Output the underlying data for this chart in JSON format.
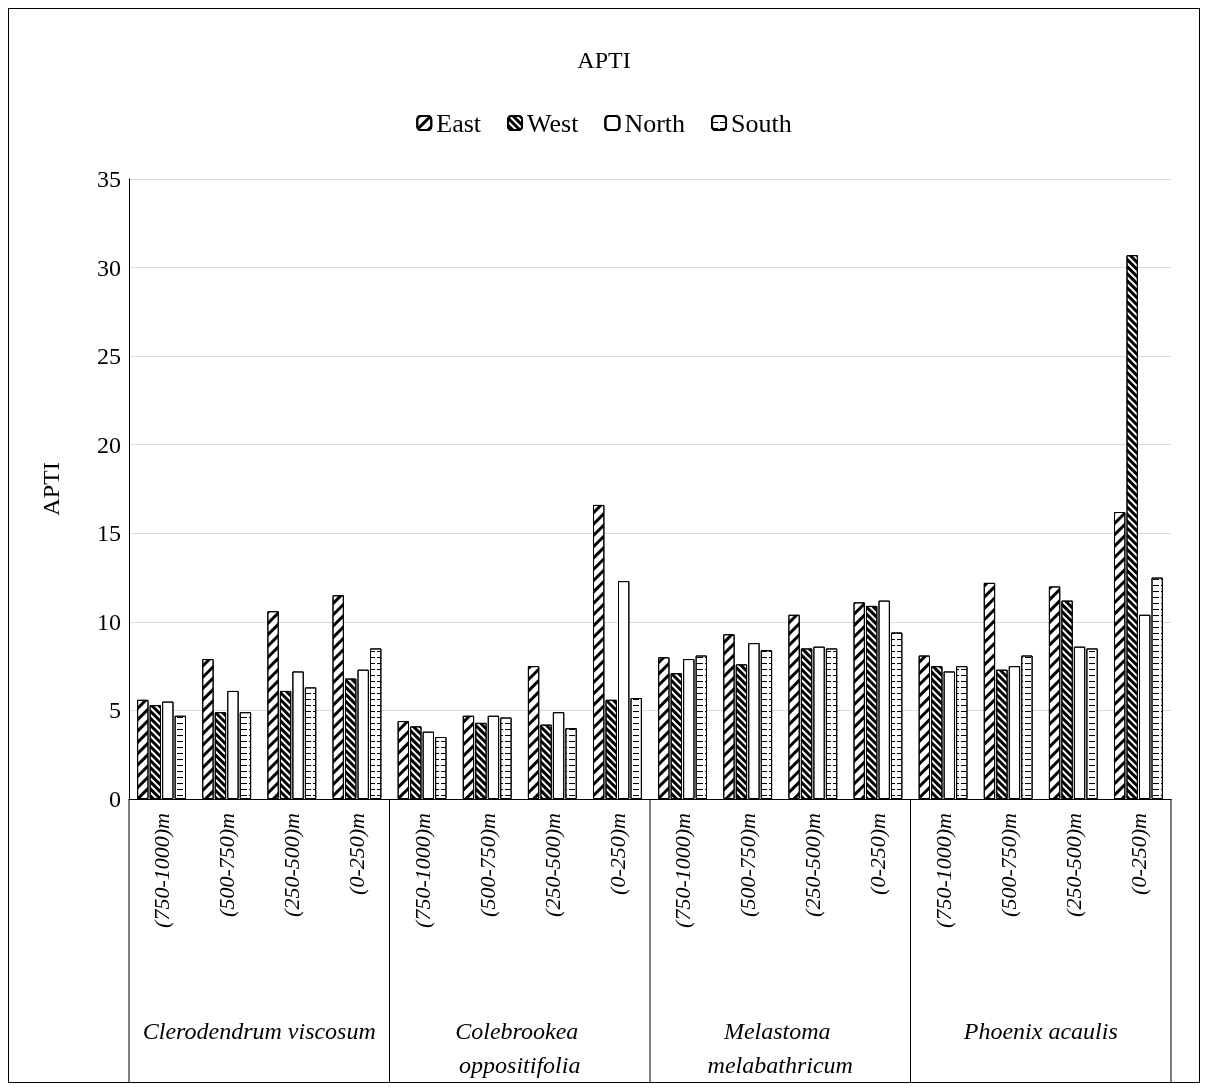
{
  "chart_data": {
    "type": "bar",
    "title": "APTI",
    "ylabel": "APTI",
    "categories": [
      "(750-1000)m",
      "(500-750)m",
      "(250-500)m",
      "(0-250)m",
      "(750-1000)m",
      "(500-750)m",
      "(250-500)m",
      "(0-250)m",
      "(750-1000)m",
      "(500-750)m",
      "(250-500)m",
      "(0-250)m",
      "(750-1000)m",
      "(500-750)m",
      "(250-500)m",
      "(0-250)m"
    ],
    "annotations": [
      "Clerodendrum viscosum",
      "Colebrookea oppositifolia",
      "Melastoma melabathricum",
      "Phoenix acaulis"
    ],
    "series": [
      {
        "name": "East",
        "color": "#ffffff",
        "values": [
          5.6,
          7.9,
          10.6,
          11.5,
          4.4,
          4.7,
          7.5,
          16.6,
          8.0,
          9.3,
          10.4,
          11.1,
          8.1,
          12.2,
          12.0,
          16.2
        ]
      },
      {
        "name": "West",
        "color": "#ffffff",
        "values": [
          5.3,
          4.9,
          6.1,
          6.8,
          4.1,
          4.3,
          4.2,
          5.6,
          7.1,
          7.6,
          8.5,
          10.9,
          7.5,
          7.3,
          11.2,
          30.7
        ]
      },
      {
        "name": "North",
        "color": "#ffffff",
        "values": [
          5.5,
          6.1,
          7.2,
          7.3,
          3.8,
          4.7,
          4.9,
          12.3,
          7.9,
          8.8,
          8.6,
          11.2,
          7.2,
          7.5,
          8.6,
          10.4
        ]
      },
      {
        "name": "South",
        "color": "#ffffff",
        "values": [
          4.7,
          4.9,
          6.3,
          8.5,
          3.5,
          4.6,
          4.0,
          5.7,
          8.1,
          8.4,
          8.5,
          9.4,
          7.5,
          8.1,
          8.5,
          12.5
        ]
      }
    ],
    "ylim": [
      0,
      35
    ],
    "yticks": [
      0,
      5,
      10,
      15,
      20,
      25,
      30,
      35
    ],
    "grid": "y",
    "legend": "top"
  }
}
